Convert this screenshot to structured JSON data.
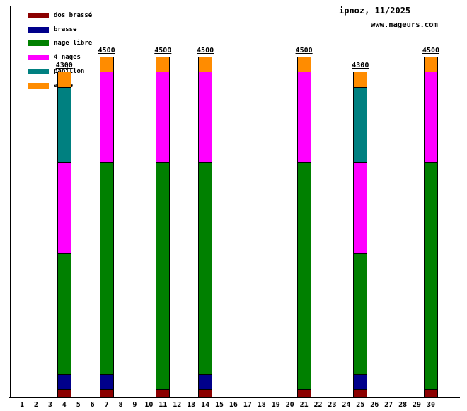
{
  "header": {
    "title": "ipnoz, 11/2025",
    "site": "www.nageurs.com"
  },
  "legend": [
    {
      "label": "dos brassé",
      "color": "#8B0000"
    },
    {
      "label": "brasse",
      "color": "#00008B"
    },
    {
      "label": "nage libre",
      "color": "#008000"
    },
    {
      "label": "4 nages",
      "color": "#FF00FF"
    },
    {
      "label": "papillon",
      "color": "#008080"
    },
    {
      "label": "autre",
      "color": "#FF8C00"
    }
  ],
  "chart_data": {
    "type": "bar",
    "stacked": true,
    "title": "ipnoz, 11/2025",
    "subtitle": "www.nageurs.com",
    "xlabel": "",
    "ylabel": "",
    "ylim": [
      0,
      4500
    ],
    "grid": false,
    "legend_position": "top-left",
    "x_ticks": [
      1,
      2,
      3,
      4,
      5,
      6,
      7,
      8,
      9,
      10,
      11,
      12,
      13,
      14,
      15,
      16,
      17,
      18,
      19,
      20,
      21,
      22,
      23,
      24,
      25,
      26,
      27,
      28,
      29,
      30
    ],
    "series_order": [
      "dos brassé",
      "brasse",
      "nage libre",
      "4 nages",
      "papillon",
      "autre"
    ],
    "bars": [
      {
        "day": 4,
        "total": 4300,
        "total_label": "4300",
        "segments": {
          "dos brassé": 100,
          "brasse": 200,
          "nage libre": 1600,
          "4 nages": 1200,
          "papillon": 1000,
          "autre": 200
        }
      },
      {
        "day": 7,
        "total": 4500,
        "total_label": "4500",
        "segments": {
          "dos brassé": 100,
          "brasse": 200,
          "nage libre": 2800,
          "4 nages": 1200,
          "papillon": 0,
          "autre": 200
        }
      },
      {
        "day": 11,
        "total": 4500,
        "total_label": "4500",
        "segments": {
          "dos brassé": 100,
          "brasse": 0,
          "nage libre": 3000,
          "4 nages": 1200,
          "papillon": 0,
          "autre": 200
        }
      },
      {
        "day": 14,
        "total": 4500,
        "total_label": "4500",
        "segments": {
          "dos brassé": 100,
          "brasse": 200,
          "nage libre": 2800,
          "4 nages": 1200,
          "papillon": 0,
          "autre": 200
        }
      },
      {
        "day": 21,
        "total": 4500,
        "total_label": "4500",
        "segments": {
          "dos brassé": 100,
          "brasse": 0,
          "nage libre": 3000,
          "4 nages": 1200,
          "papillon": 0,
          "autre": 200
        }
      },
      {
        "day": 25,
        "total": 4300,
        "total_label": "4300",
        "segments": {
          "dos brassé": 100,
          "brasse": 200,
          "nage libre": 1600,
          "4 nages": 1200,
          "papillon": 1000,
          "autre": 200
        }
      },
      {
        "day": 30,
        "total": 4500,
        "total_label": "4500",
        "segments": {
          "dos brassé": 100,
          "brasse": 0,
          "nage libre": 3000,
          "4 nages": 1200,
          "papillon": 0,
          "autre": 200
        }
      }
    ]
  }
}
